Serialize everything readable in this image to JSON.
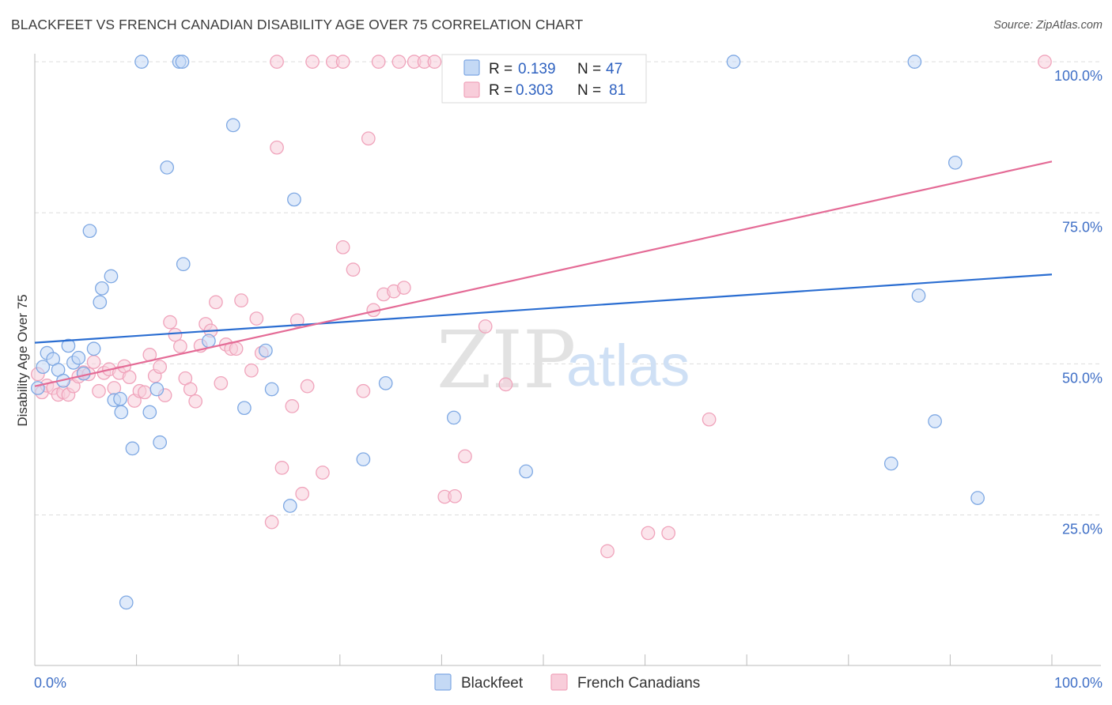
{
  "title": "BLACKFEET VS FRENCH CANADIAN DISABILITY AGE OVER 75 CORRELATION CHART",
  "source": "Source: ZipAtlas.com",
  "watermark": {
    "zip": "ZIP",
    "atlas": "atlas"
  },
  "chart_data": {
    "type": "scatter",
    "ylabel": "Disability Age Over 75",
    "xlim": [
      0,
      100
    ],
    "ylim": [
      0,
      105
    ],
    "x_tick_labels": [
      "0.0%",
      "100.0%"
    ],
    "y_ticks": [
      {
        "value": 25,
        "label": "25.0%"
      },
      {
        "value": 50,
        "label": "50.0%"
      },
      {
        "value": 75,
        "label": "75.0%"
      },
      {
        "value": 100,
        "label": "100.0%"
      }
    ],
    "grid": true,
    "legend": {
      "placement": "top-center",
      "rows": [
        {
          "r_label": "R =",
          "r_value": "0.139",
          "n_label": "N =",
          "n_value": "47"
        },
        {
          "r_label": "R =",
          "r_value": "0.303",
          "n_label": "N =",
          "n_value": "81"
        }
      ]
    },
    "series": [
      {
        "name": "Blackfeet",
        "color": "#7ea8e3",
        "fill": "#c4d9f5",
        "line_color": "#2a6dd1",
        "trend": {
          "x": [
            0,
            100
          ],
          "y": [
            53.5,
            64.8
          ]
        },
        "points": [
          [
            0.8,
            49.5
          ],
          [
            1.2,
            51.8
          ],
          [
            1.8,
            50.8
          ],
          [
            2.3,
            49.0
          ],
          [
            2.8,
            47.2
          ],
          [
            3.3,
            53.0
          ],
          [
            3.8,
            50.2
          ],
          [
            4.3,
            51.0
          ],
          [
            4.8,
            48.4
          ],
          [
            5.8,
            52.5
          ],
          [
            5.4,
            72.0
          ],
          [
            6.4,
            60.2
          ],
          [
            6.6,
            62.5
          ],
          [
            7.5,
            64.5
          ],
          [
            7.8,
            44.0
          ],
          [
            8.4,
            44.2
          ],
          [
            8.5,
            42.0
          ],
          [
            9.6,
            36.0
          ],
          [
            9.0,
            10.5
          ],
          [
            11.3,
            42.0
          ],
          [
            12.3,
            37.0
          ],
          [
            12.0,
            45.8
          ],
          [
            13.0,
            82.5
          ],
          [
            14.2,
            100.0
          ],
          [
            14.5,
            100.0
          ],
          [
            14.6,
            66.5
          ],
          [
            10.5,
            100.0
          ],
          [
            17.1,
            53.8
          ],
          [
            19.5,
            89.5
          ],
          [
            20.6,
            42.7
          ],
          [
            22.7,
            52.2
          ],
          [
            23.3,
            45.8
          ],
          [
            25.1,
            26.5
          ],
          [
            25.5,
            77.2
          ],
          [
            32.3,
            34.2
          ],
          [
            34.5,
            46.8
          ],
          [
            41.2,
            41.1
          ],
          [
            48.3,
            32.2
          ],
          [
            59.4,
            100.0
          ],
          [
            68.7,
            100.0
          ],
          [
            86.5,
            100.0
          ],
          [
            88.5,
            40.5
          ],
          [
            84.2,
            33.5
          ],
          [
            86.9,
            61.3
          ],
          [
            90.5,
            83.3
          ],
          [
            92.7,
            27.8
          ],
          [
            0.3,
            46.0
          ]
        ]
      },
      {
        "name": "French Canadians",
        "color": "#f0a3bb",
        "fill": "#f8cdda",
        "line_color": "#e46b96",
        "trend": {
          "x": [
            0,
            100
          ],
          "y": [
            46.3,
            83.5
          ]
        },
        "points": [
          [
            0.3,
            48.3
          ],
          [
            0.7,
            45.3
          ],
          [
            1.2,
            46.4
          ],
          [
            1.8,
            46.0
          ],
          [
            2.3,
            44.9
          ],
          [
            2.8,
            45.3
          ],
          [
            3.3,
            44.9
          ],
          [
            3.8,
            46.3
          ],
          [
            4.3,
            47.9
          ],
          [
            4.8,
            48.6
          ],
          [
            5.3,
            48.3
          ],
          [
            5.8,
            50.3
          ],
          [
            6.3,
            45.5
          ],
          [
            6.8,
            48.5
          ],
          [
            7.3,
            49.1
          ],
          [
            7.8,
            46.0
          ],
          [
            8.3,
            48.5
          ],
          [
            8.8,
            49.6
          ],
          [
            9.3,
            47.8
          ],
          [
            9.8,
            43.9
          ],
          [
            10.3,
            45.5
          ],
          [
            10.8,
            45.3
          ],
          [
            11.3,
            51.5
          ],
          [
            11.8,
            48.0
          ],
          [
            12.3,
            49.5
          ],
          [
            12.8,
            44.8
          ],
          [
            13.3,
            56.9
          ],
          [
            13.8,
            54.8
          ],
          [
            14.3,
            52.9
          ],
          [
            14.8,
            47.6
          ],
          [
            15.3,
            45.8
          ],
          [
            15.8,
            43.8
          ],
          [
            16.3,
            53.0
          ],
          [
            16.8,
            56.6
          ],
          [
            17.3,
            55.5
          ],
          [
            17.8,
            60.2
          ],
          [
            18.3,
            46.8
          ],
          [
            18.8,
            53.2
          ],
          [
            19.3,
            52.5
          ],
          [
            19.8,
            52.5
          ],
          [
            20.3,
            60.5
          ],
          [
            21.3,
            48.9
          ],
          [
            21.8,
            57.5
          ],
          [
            22.3,
            51.8
          ],
          [
            23.3,
            23.8
          ],
          [
            23.8,
            85.8
          ],
          [
            24.3,
            32.8
          ],
          [
            25.3,
            43.0
          ],
          [
            25.8,
            57.2
          ],
          [
            26.3,
            28.5
          ],
          [
            26.8,
            46.3
          ],
          [
            23.8,
            100.0
          ],
          [
            27.3,
            100.0
          ],
          [
            28.3,
            32.0
          ],
          [
            29.3,
            100.0
          ],
          [
            30.3,
            100.0
          ],
          [
            31.3,
            65.6
          ],
          [
            30.3,
            69.3
          ],
          [
            32.3,
            45.5
          ],
          [
            32.8,
            87.3
          ],
          [
            33.3,
            58.9
          ],
          [
            33.8,
            100.0
          ],
          [
            34.3,
            61.5
          ],
          [
            35.3,
            62.0
          ],
          [
            35.8,
            100.0
          ],
          [
            36.3,
            62.6
          ],
          [
            37.3,
            100.0
          ],
          [
            38.3,
            100.0
          ],
          [
            39.3,
            100.0
          ],
          [
            40.3,
            28.0
          ],
          [
            41.3,
            28.1
          ],
          [
            42.3,
            34.7
          ],
          [
            44.3,
            56.2
          ],
          [
            46.3,
            46.6
          ],
          [
            50.3,
            100.0
          ],
          [
            52.3,
            100.0
          ],
          [
            56.3,
            19.0
          ],
          [
            60.3,
            22.0
          ],
          [
            62.3,
            22.0
          ],
          [
            66.3,
            40.8
          ],
          [
            99.3,
            100.0
          ]
        ]
      }
    ]
  }
}
